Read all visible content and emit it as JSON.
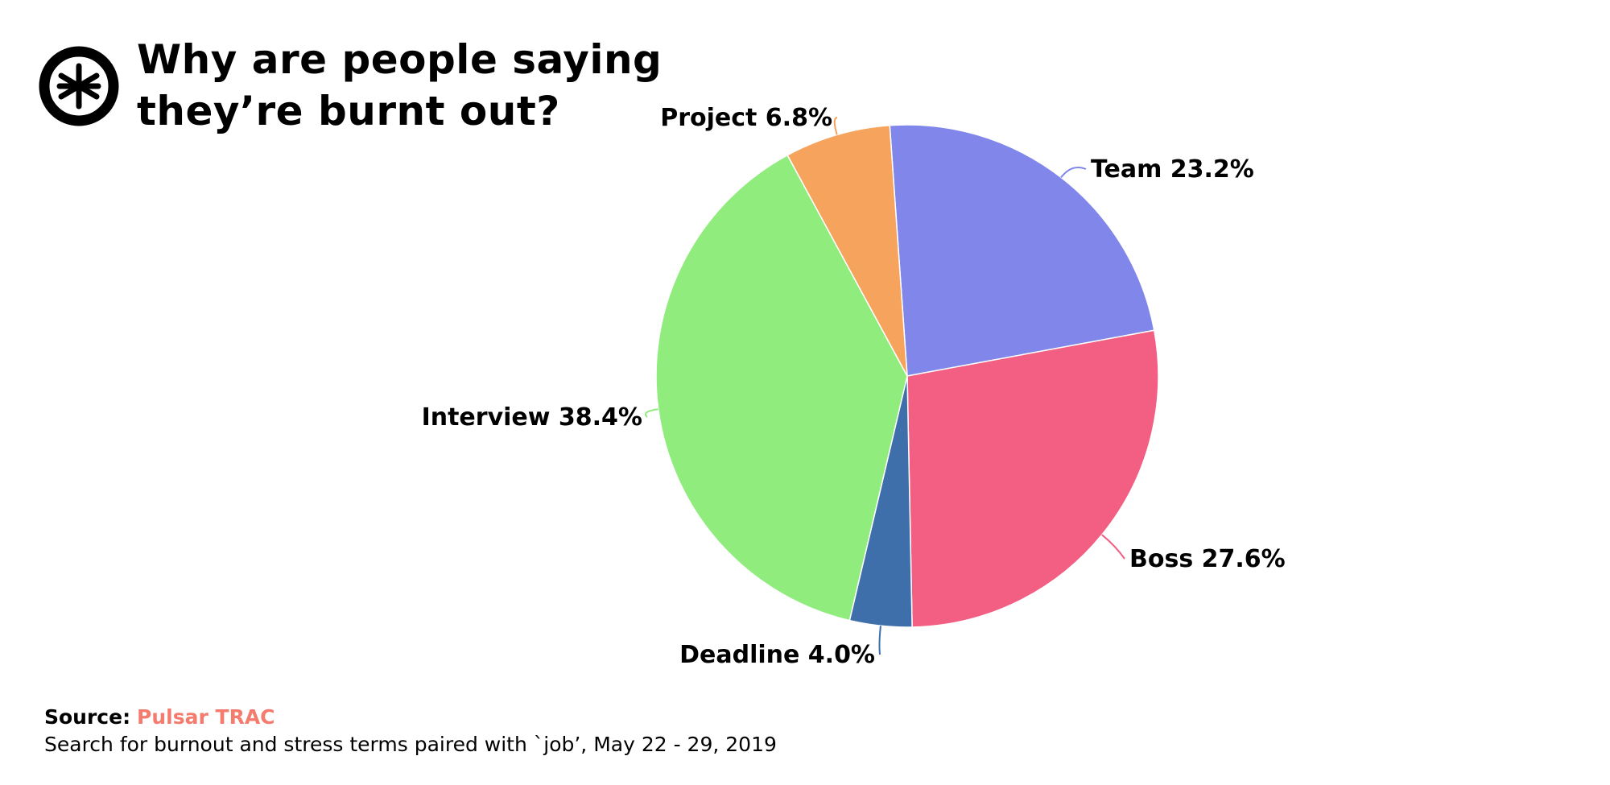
{
  "header": {
    "title_line1": "Why are people saying",
    "title_line2": "they’re burnt out?",
    "logo_icon": "asterisk-circle-icon"
  },
  "chart_data": {
    "type": "pie",
    "title": "Why are people saying they’re burnt out?",
    "start_angle_deg": -4,
    "direction": "clockwise",
    "slices": [
      {
        "label": "Team",
        "value": 23.2,
        "display": "Team 23.2%",
        "color": "#8187EA"
      },
      {
        "label": "Boss",
        "value": 27.6,
        "display": "Boss 27.6%",
        "color": "#F25F83"
      },
      {
        "label": "Deadline",
        "value": 4.0,
        "display": "Deadline 4.0%",
        "color": "#3F6FAB"
      },
      {
        "label": "Interview",
        "value": 38.4,
        "display": "Interview 38.4%",
        "color": "#90EC7D"
      },
      {
        "label": "Project",
        "value": 6.8,
        "display": "Project 6.8%",
        "color": "#F6A35D"
      }
    ],
    "legend": "none"
  },
  "footer": {
    "source_prefix": "Source:",
    "source_name": "Pulsar TRAC",
    "source_color": "#F47C6E",
    "note": "Search for burnout and stress terms paired with `job’, May 22 - 29, 2019"
  }
}
